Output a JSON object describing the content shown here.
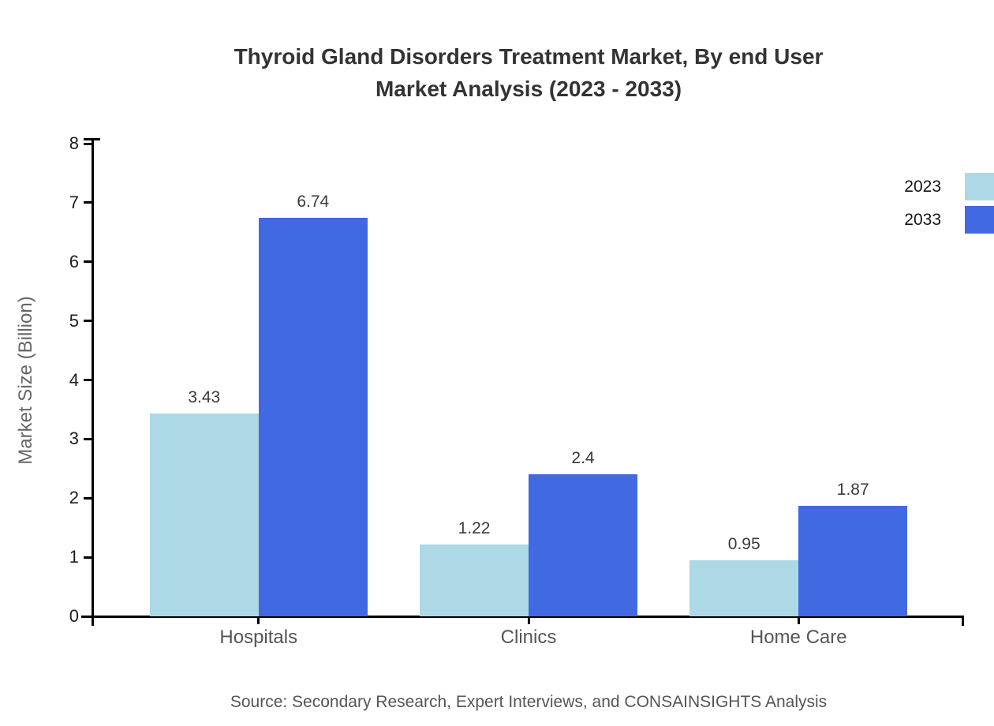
{
  "title": {
    "line1": "Thyroid Gland Disorders Treatment Market, By end User",
    "line2": "Market Analysis (2023 - 2033)"
  },
  "source": "Source: Secondary Research, Expert Interviews, and CONSAINSIGHTS Analysis",
  "chart_data": {
    "type": "bar",
    "categories": [
      "Hospitals",
      "Clinics",
      "Home Care"
    ],
    "series": [
      {
        "name": "2023",
        "color": "#ADD8E6",
        "values": [
          3.43,
          1.22,
          0.95
        ]
      },
      {
        "name": "2033",
        "color": "#4169E1",
        "values": [
          6.74,
          2.4,
          1.87
        ]
      }
    ],
    "title": "Thyroid Gland Disorders Treatment Market, By end User Market Analysis (2023 - 2033)",
    "xlabel": "",
    "ylabel": "Market Size (Billion)",
    "ylim": [
      0,
      8
    ],
    "yticks": [
      0,
      1,
      2,
      3,
      4,
      5,
      6,
      7,
      8
    ],
    "grid": false,
    "legend_position": "top-right",
    "value_label_format": "plain"
  }
}
